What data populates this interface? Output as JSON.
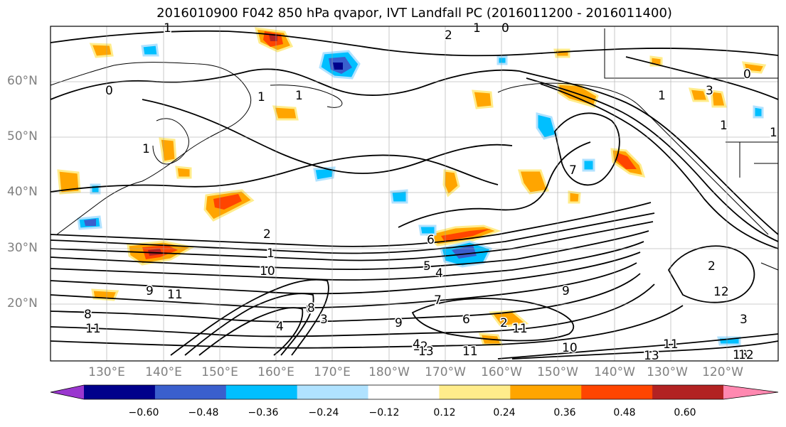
{
  "title": "2016010900 F042 850 hPa qvapor, IVT Landfall PC (2016011200 - 2016011400)",
  "lat_labels": [
    "60°N",
    "50°N",
    "40°N",
    "30°N",
    "20°N"
  ],
  "lon_labels": [
    "130°E",
    "140°E",
    "150°E",
    "160°E",
    "170°E",
    "180°W",
    "170°W",
    "160°W",
    "150°W",
    "140°W",
    "130°W",
    "120°W"
  ],
  "colorbar": {
    "tick_labels": [
      "−0.60",
      "−0.48",
      "−0.36",
      "−0.24",
      "−0.12",
      "0.12",
      "0.24",
      "0.36",
      "0.48",
      "0.60"
    ],
    "colors": [
      "#9a37cf",
      "#00008b",
      "#3a5fcd",
      "#00bfff",
      "#b0e2ff",
      "#ffffff",
      "#ffec8b",
      "#ffa500",
      "#ff4500",
      "#b22222",
      "#ff88b0"
    ]
  },
  "contour_labels": [
    "1",
    "0",
    "1",
    "2",
    "1",
    "0",
    "1",
    "0",
    "1",
    "1",
    "1",
    "7",
    "1",
    "3",
    "2",
    "1",
    "10",
    "11",
    "8",
    "11",
    "9",
    "12",
    "13",
    "11",
    "10",
    "13",
    "11",
    "13",
    "12",
    "2",
    "3",
    "4",
    "5",
    "6",
    "7",
    "8",
    "9",
    "4",
    "8",
    "4",
    "12",
    "2",
    "3",
    "9",
    "6",
    "11"
  ]
}
